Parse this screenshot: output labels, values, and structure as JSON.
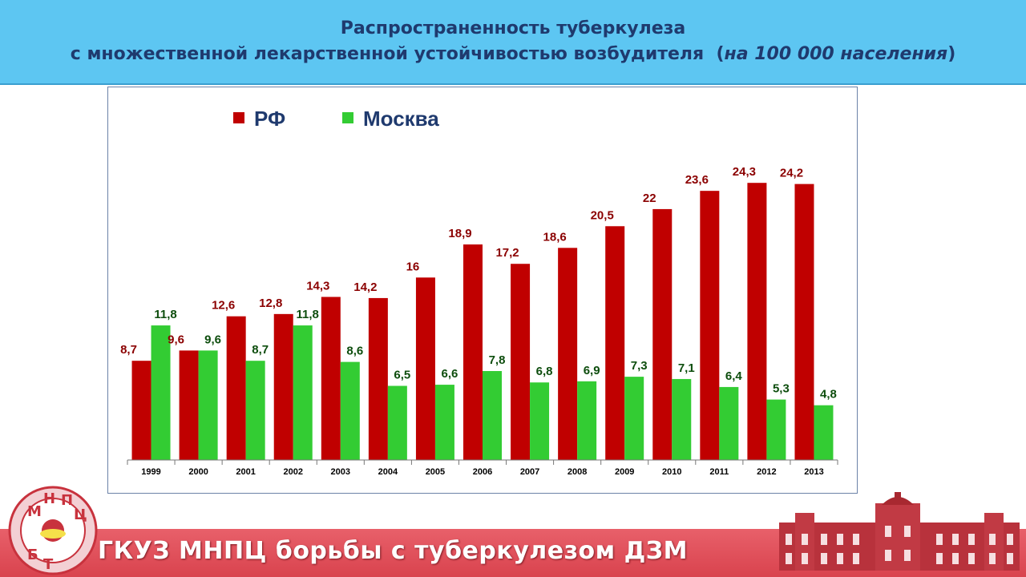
{
  "header": {
    "title_line1": "Распространенность туберкулеза",
    "title_line2_main": "с множественной лекарственной устойчивостью возбудителя",
    "title_line2_paren": "на 100 000  населения"
  },
  "footer": {
    "org_name": "ГКУЗ МНПЦ борьбы с туберкулезом ДЗМ"
  },
  "logo": {
    "letters": [
      "М",
      "Н",
      "П",
      "Ц",
      "Б",
      "Т"
    ]
  },
  "colors": {
    "rf": "#c00000",
    "moscow": "#33cc33",
    "header_bg": "#5dc6f2",
    "footer_bg": "#d9434e"
  },
  "chart_data": {
    "type": "bar",
    "title": "",
    "xlabel": "",
    "ylabel": "",
    "ylim": [
      0,
      26
    ],
    "grid": false,
    "legend_position": "top-left",
    "categories": [
      "1999",
      "2000",
      "2001",
      "2002",
      "2003",
      "2004",
      "2005",
      "2006",
      "2007",
      "2008",
      "2009",
      "2010",
      "2011",
      "2012",
      "2013"
    ],
    "series": [
      {
        "name": "РФ",
        "color": "#c00000",
        "values": [
          8.7,
          9.6,
          12.6,
          12.8,
          14.3,
          14.2,
          16,
          18.9,
          17.2,
          18.6,
          20.5,
          22,
          23.6,
          24.3,
          24.2
        ],
        "labels": [
          "8,7",
          "9,6",
          "12,6",
          "12,8",
          "14,3",
          "14,2",
          "16",
          "18,9",
          "17,2",
          "18,6",
          "20,5",
          "22",
          "23,6",
          "24,3",
          "24,2"
        ]
      },
      {
        "name": "Москва",
        "color": "#33cc33",
        "values": [
          11.8,
          9.6,
          8.7,
          11.8,
          8.6,
          6.5,
          6.6,
          7.8,
          6.8,
          6.9,
          7.3,
          7.1,
          6.4,
          5.3,
          4.8
        ],
        "labels": [
          "11,8",
          "9,6",
          "8,7",
          "11,8",
          "8,6",
          "6,5",
          "6,6",
          "7,8",
          "6,8",
          "6,9",
          "7,3",
          "7,1",
          "6,4",
          "5,3",
          "4,8"
        ]
      }
    ]
  }
}
